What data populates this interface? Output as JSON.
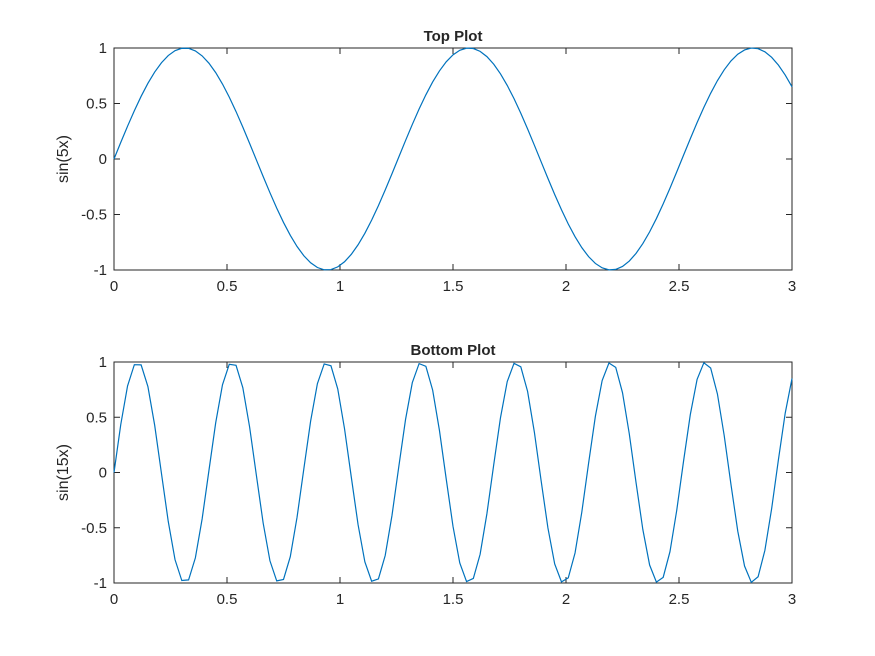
{
  "chart_data": [
    {
      "type": "line",
      "title": "Top Plot",
      "xlabel": "",
      "ylabel": "sin(5x)",
      "xlim": [
        0,
        3
      ],
      "ylim": [
        -1,
        1
      ],
      "xticks": [
        "0",
        "0.5",
        "1",
        "1.5",
        "2",
        "2.5",
        "3"
      ],
      "yticks": [
        "-1",
        "-0.5",
        "0",
        "0.5",
        "1"
      ],
      "grid": false,
      "series": [
        {
          "expression": "sin(5x)",
          "color": "#0072BD",
          "x_step": 0.03,
          "x": [
            0,
            0.31,
            0.94,
            1.57,
            2.2,
            2.83,
            3
          ],
          "y": [
            0,
            1,
            -1,
            1,
            -1,
            1,
            0.65
          ]
        }
      ]
    },
    {
      "type": "line",
      "title": "Bottom Plot",
      "xlabel": "",
      "ylabel": "sin(15x)",
      "xlim": [
        0,
        3
      ],
      "ylim": [
        -1,
        1
      ],
      "xticks": [
        "0",
        "0.5",
        "1",
        "1.5",
        "2",
        "2.5",
        "3"
      ],
      "yticks": [
        "-1",
        "-0.5",
        "0",
        "0.5",
        "1"
      ],
      "grid": false,
      "series": [
        {
          "expression": "sin(15x)",
          "color": "#0072BD",
          "x_step": 0.03,
          "x": [
            0,
            0.1,
            0.31,
            0.52,
            0.73,
            0.94,
            1.15,
            1.36,
            1.57,
            1.78,
            1.99,
            2.2,
            2.41,
            2.62,
            2.83,
            3
          ],
          "y": [
            0,
            1,
            -1,
            1,
            -1,
            1,
            -1,
            1,
            -1,
            1,
            -1,
            1,
            -1,
            1,
            -1,
            0.85
          ]
        }
      ]
    }
  ]
}
